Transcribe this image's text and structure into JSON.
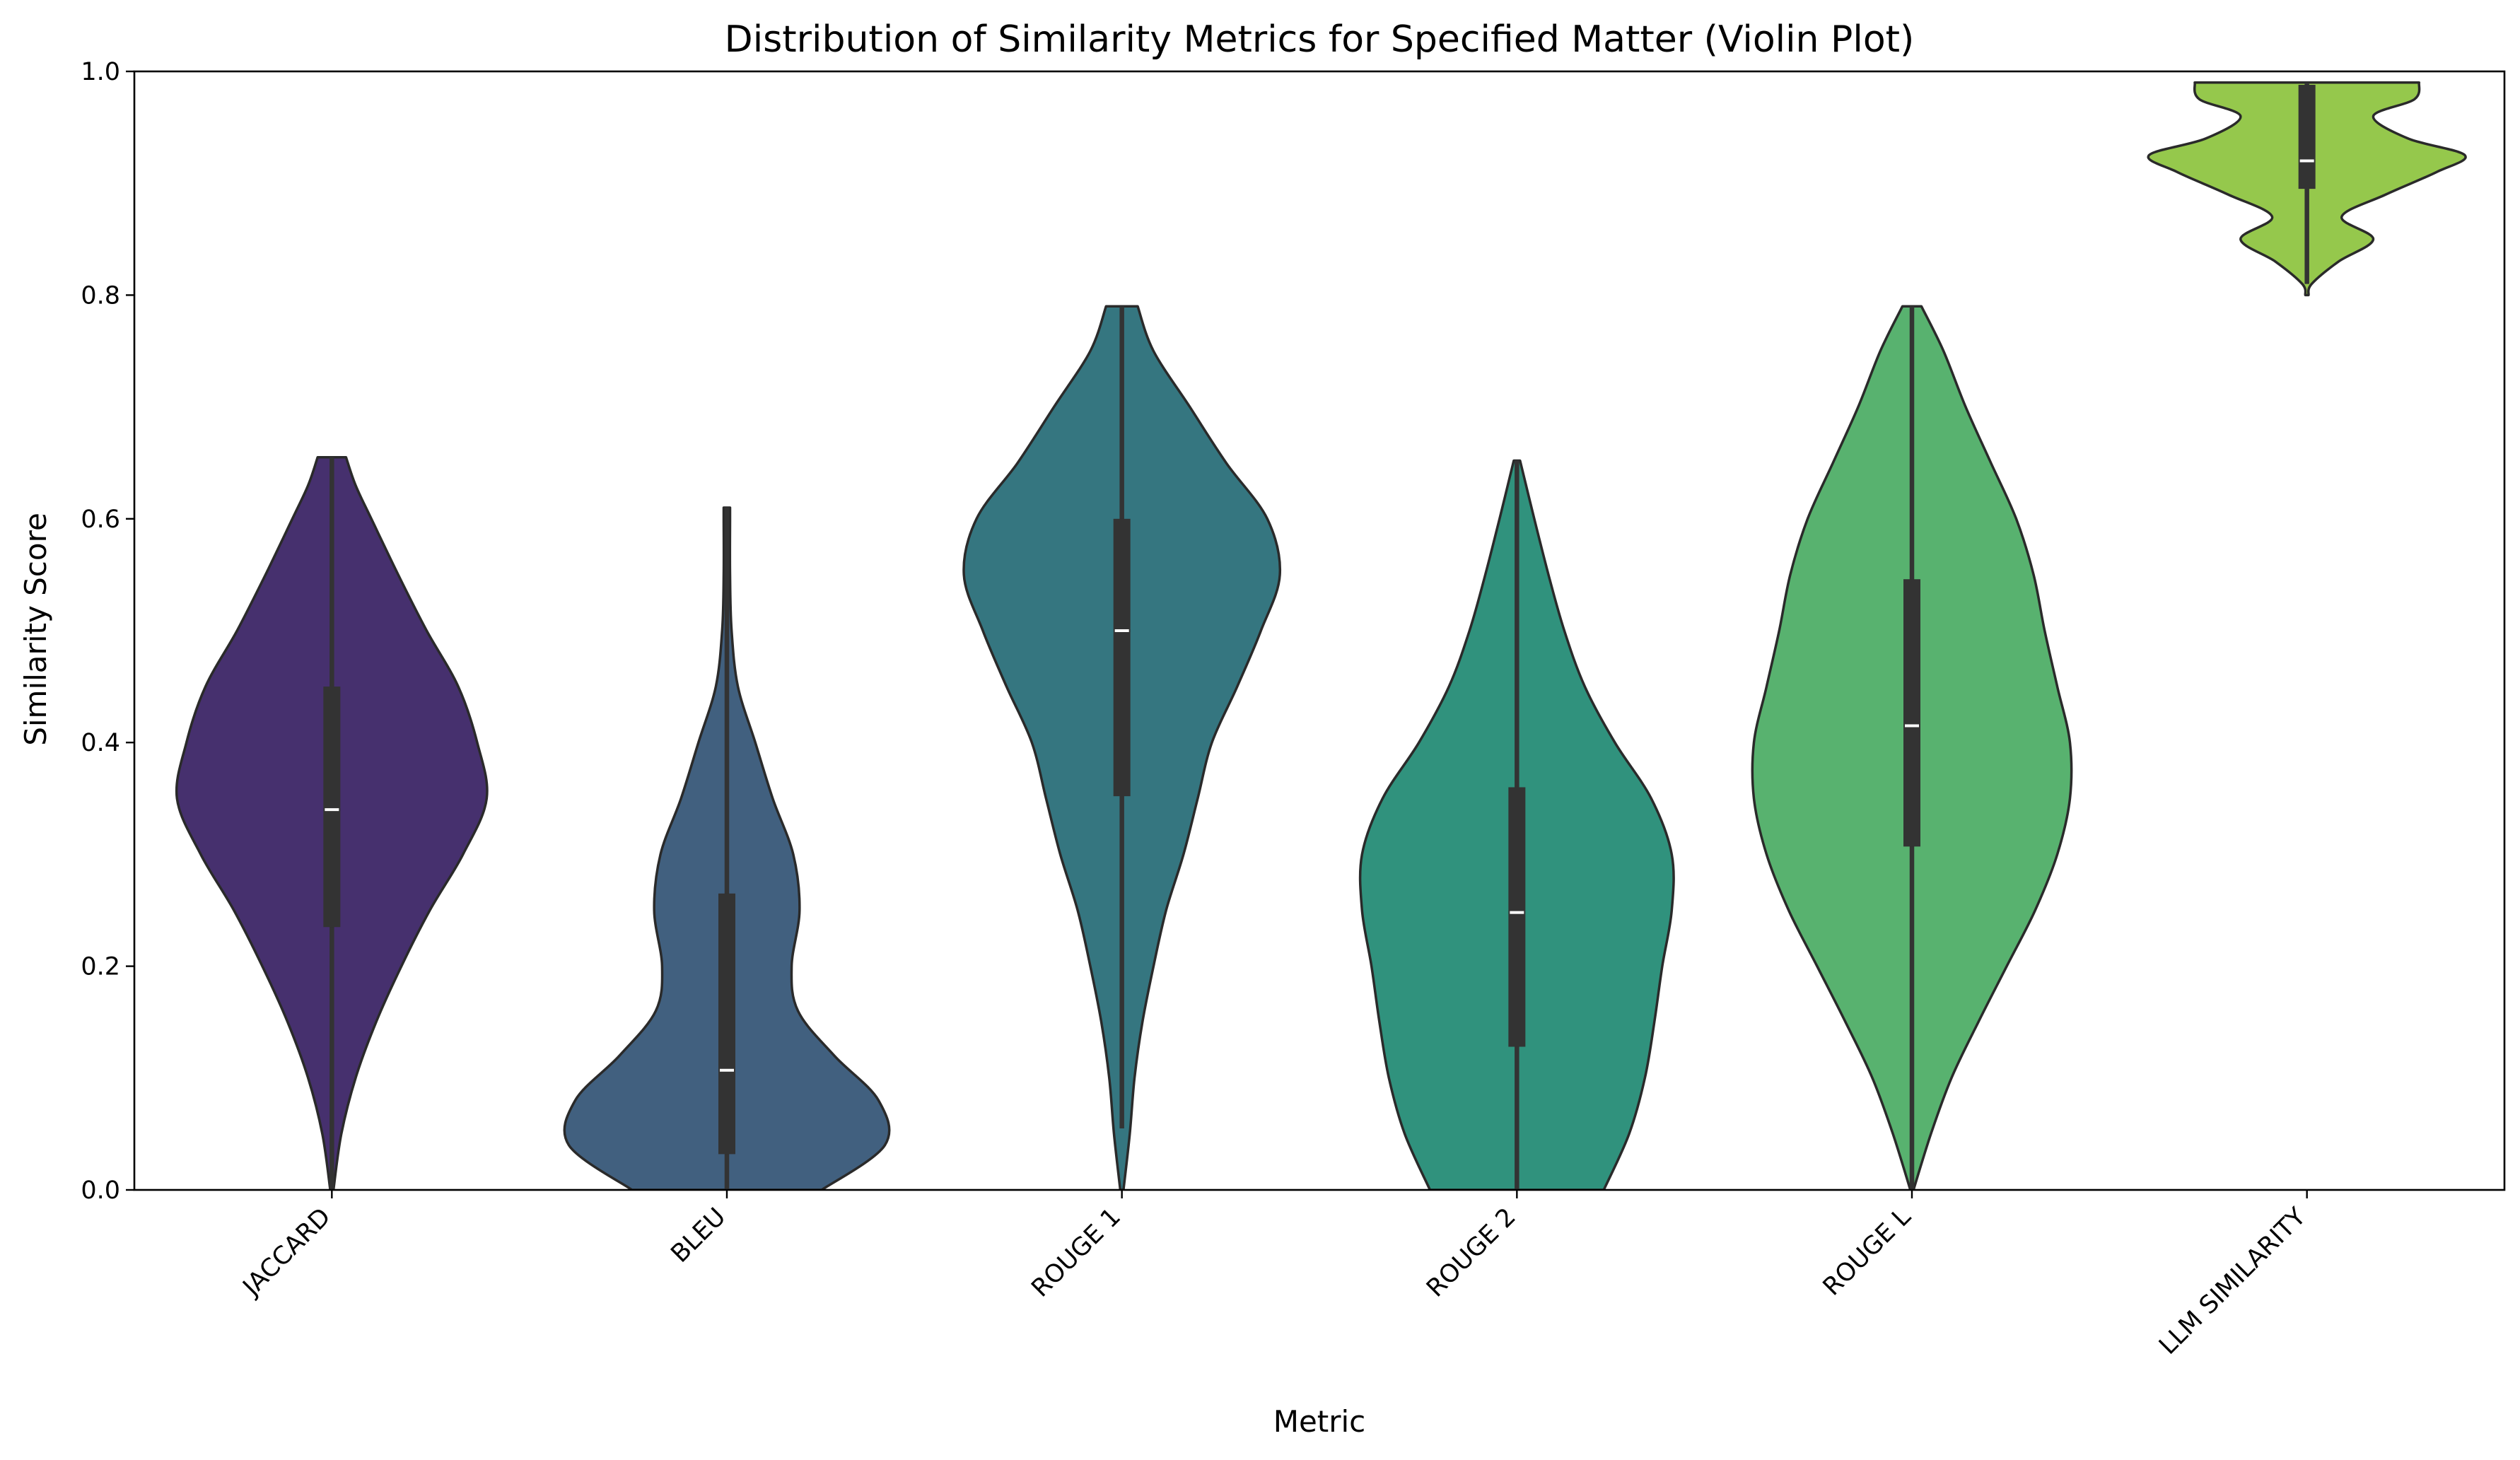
{
  "chart_data": {
    "type": "violin",
    "title": "Distribution of Similarity Metrics for Specified Matter (Violin Plot)",
    "xlabel": "Metric",
    "ylabel": "Similarity Score",
    "ylim": [
      0.0,
      1.0
    ],
    "yticks": [
      0.0,
      0.2,
      0.4,
      0.6,
      0.8,
      1.0
    ],
    "ytick_labels": [
      "0.0",
      "0.2",
      "0.4",
      "0.6",
      "0.8",
      "1.0"
    ],
    "grid": false,
    "legend": "none",
    "categories": [
      "JACCARD",
      "BLEU",
      "ROUGE 1",
      "ROUGE 2",
      "ROUGE L",
      "LLM SIMILARITY"
    ],
    "series": [
      {
        "category": "JACCARD",
        "color": "#46306e",
        "min": 0.0,
        "q1": 0.235,
        "median": 0.34,
        "q3": 0.45,
        "max": 0.655,
        "density": [
          [
            0.0,
            0.01
          ],
          [
            0.05,
            0.06
          ],
          [
            0.1,
            0.15
          ],
          [
            0.15,
            0.28
          ],
          [
            0.2,
            0.44
          ],
          [
            0.25,
            0.62
          ],
          [
            0.3,
            0.83
          ],
          [
            0.35,
            0.98
          ],
          [
            0.4,
            0.92
          ],
          [
            0.45,
            0.8
          ],
          [
            0.5,
            0.6
          ],
          [
            0.55,
            0.42
          ],
          [
            0.6,
            0.25
          ],
          [
            0.63,
            0.15
          ],
          [
            0.655,
            0.09
          ]
        ]
      },
      {
        "category": "BLEU",
        "color": "#41607f",
        "min": 0.0,
        "q1": 0.032,
        "median": 0.107,
        "q3": 0.265,
        "max": 0.61,
        "density": [
          [
            0.0,
            0.6
          ],
          [
            0.04,
            1.0
          ],
          [
            0.08,
            0.96
          ],
          [
            0.12,
            0.68
          ],
          [
            0.16,
            0.45
          ],
          [
            0.2,
            0.41
          ],
          [
            0.25,
            0.46
          ],
          [
            0.3,
            0.42
          ],
          [
            0.35,
            0.29
          ],
          [
            0.4,
            0.18
          ],
          [
            0.45,
            0.07
          ],
          [
            0.5,
            0.03
          ],
          [
            0.55,
            0.02
          ],
          [
            0.6,
            0.02
          ],
          [
            0.61,
            0.02
          ]
        ]
      },
      {
        "category": "ROUGE 1",
        "color": "#357680",
        "min": 0.055,
        "q1": 0.352,
        "median": 0.5,
        "q3": 0.6,
        "max": 0.79,
        "density": [
          [
            0.0,
            0.01
          ],
          [
            0.05,
            0.05
          ],
          [
            0.1,
            0.08
          ],
          [
            0.15,
            0.13
          ],
          [
            0.2,
            0.2
          ],
          [
            0.25,
            0.28
          ],
          [
            0.3,
            0.39
          ],
          [
            0.35,
            0.48
          ],
          [
            0.4,
            0.57
          ],
          [
            0.45,
            0.73
          ],
          [
            0.5,
            0.88
          ],
          [
            0.55,
            1.0
          ],
          [
            0.6,
            0.92
          ],
          [
            0.65,
            0.66
          ],
          [
            0.7,
            0.43
          ],
          [
            0.75,
            0.2
          ],
          [
            0.79,
            0.1
          ]
        ]
      },
      {
        "category": "ROUGE 2",
        "color": "#30927d",
        "min": 0.0,
        "q1": 0.128,
        "median": 0.248,
        "q3": 0.36,
        "max": 0.652,
        "density": [
          [
            0.0,
            0.55
          ],
          [
            0.05,
            0.71
          ],
          [
            0.1,
            0.81
          ],
          [
            0.15,
            0.87
          ],
          [
            0.2,
            0.92
          ],
          [
            0.25,
            0.98
          ],
          [
            0.3,
            0.98
          ],
          [
            0.35,
            0.85
          ],
          [
            0.4,
            0.62
          ],
          [
            0.45,
            0.43
          ],
          [
            0.5,
            0.3
          ],
          [
            0.55,
            0.2
          ],
          [
            0.6,
            0.11
          ],
          [
            0.652,
            0.02
          ]
        ]
      },
      {
        "category": "ROUGE L",
        "color": "#58b26f",
        "min": 0.0,
        "q1": 0.307,
        "median": 0.415,
        "q3": 0.546,
        "max": 0.79,
        "density": [
          [
            0.0,
            0.01
          ],
          [
            0.05,
            0.12
          ],
          [
            0.1,
            0.25
          ],
          [
            0.15,
            0.42
          ],
          [
            0.2,
            0.6
          ],
          [
            0.25,
            0.78
          ],
          [
            0.3,
            0.92
          ],
          [
            0.35,
            1.0
          ],
          [
            0.4,
            1.0
          ],
          [
            0.45,
            0.92
          ],
          [
            0.5,
            0.84
          ],
          [
            0.55,
            0.77
          ],
          [
            0.6,
            0.66
          ],
          [
            0.65,
            0.5
          ],
          [
            0.7,
            0.34
          ],
          [
            0.75,
            0.2
          ],
          [
            0.79,
            0.06
          ]
        ]
      },
      {
        "category": "LLM SIMILARITY",
        "color": "#95c84c",
        "min": 0.81,
        "q1": 0.895,
        "median": 0.92,
        "q3": 0.988,
        "max": 0.99,
        "density": [
          [
            0.8,
            0.01
          ],
          [
            0.81,
            0.03
          ],
          [
            0.83,
            0.2
          ],
          [
            0.85,
            0.42
          ],
          [
            0.87,
            0.22
          ],
          [
            0.89,
            0.5
          ],
          [
            0.91,
            0.82
          ],
          [
            0.925,
            1.0
          ],
          [
            0.94,
            0.64
          ],
          [
            0.96,
            0.42
          ],
          [
            0.975,
            0.68
          ],
          [
            0.99,
            0.71
          ]
        ]
      }
    ]
  }
}
